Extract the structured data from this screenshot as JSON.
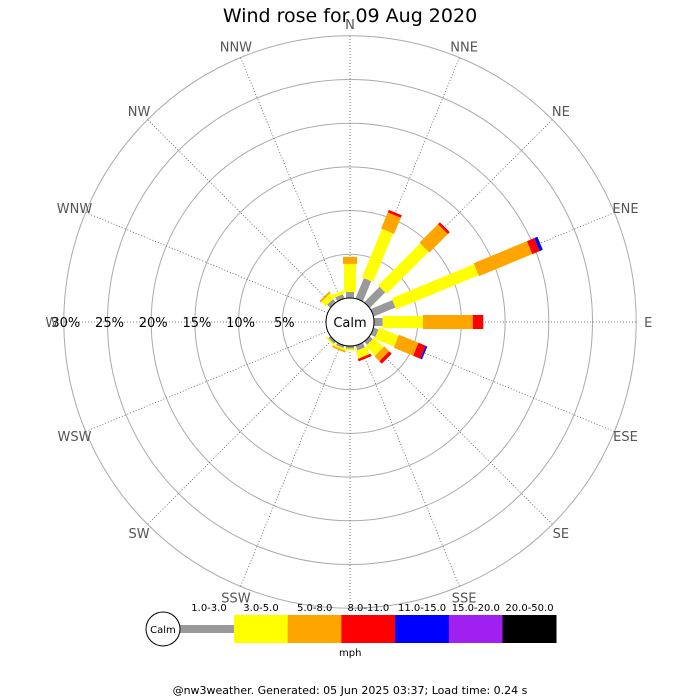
{
  "chart_data": {
    "type": "wind-rose",
    "title": "Wind rose for 09 Aug 2020",
    "unit": "mph",
    "calm_label": "Calm",
    "directions": [
      "N",
      "NNE",
      "NE",
      "ENE",
      "E",
      "ESE",
      "SE",
      "SSE",
      "S",
      "SSW",
      "SW",
      "WSW",
      "W",
      "WNW",
      "NW",
      "NNW"
    ],
    "ring_labels": [
      "5%",
      "10%",
      "15%",
      "20%",
      "25%",
      "30%"
    ],
    "ring_values": [
      5,
      10,
      15,
      20,
      25,
      30
    ],
    "speed_bins": [
      "1.0-3.0",
      "3.0-5.0",
      "5.0-8.0",
      "8.0-11.0",
      "11.0-15.0",
      "15.0-20.0",
      "20.0-50.0"
    ],
    "bin_colors": [
      "#999999",
      "#ffff00",
      "#ffa500",
      "#ff0000",
      "#0000ff",
      "#a020f0",
      "#000000"
    ],
    "calm_percent": 3,
    "frequencies": [
      {
        "dir": "N",
        "segments": [
          0.7,
          3.2,
          0.8,
          0,
          0,
          0,
          0
        ]
      },
      {
        "dir": "NNE",
        "segments": [
          2.5,
          6.0,
          2.0,
          0.3,
          0,
          0,
          0
        ]
      },
      {
        "dir": "NE",
        "segments": [
          2.5,
          6.8,
          3.0,
          0.3,
          0,
          0,
          0
        ]
      },
      {
        "dir": "ENE",
        "segments": [
          2.7,
          10.2,
          6.6,
          0.9,
          0.4,
          0,
          0
        ]
      },
      {
        "dir": "E",
        "segments": [
          1.0,
          4.6,
          5.7,
          1.2,
          0,
          0,
          0
        ]
      },
      {
        "dir": "ESE",
        "segments": [
          0.6,
          2.4,
          2.4,
          0.9,
          0.2,
          0,
          0
        ]
      },
      {
        "dir": "SE",
        "segments": [
          0.5,
          1.5,
          0.8,
          0.4,
          0,
          0,
          0
        ]
      },
      {
        "dir": "SSE",
        "segments": [
          0.6,
          0.9,
          0,
          0.3,
          0,
          0,
          0
        ]
      },
      {
        "dir": "S",
        "segments": [
          0.3,
          0.2,
          0,
          0,
          0,
          0,
          0
        ]
      },
      {
        "dir": "SSW",
        "segments": [
          0.3,
          0.2,
          0.2,
          0,
          0,
          0,
          0
        ]
      },
      {
        "dir": "SW",
        "segments": [
          0.3,
          0.2,
          0,
          0,
          0,
          0,
          0
        ]
      },
      {
        "dir": "WSW",
        "segments": [
          0,
          0,
          0,
          0,
          0,
          0,
          0
        ]
      },
      {
        "dir": "W",
        "segments": [
          0,
          0,
          0,
          0,
          0,
          0,
          0
        ]
      },
      {
        "dir": "WNW",
        "segments": [
          0,
          0,
          0,
          0,
          0,
          0,
          0
        ]
      },
      {
        "dir": "NW",
        "segments": [
          0.5,
          0.7,
          0.2,
          0,
          0,
          0,
          0
        ]
      },
      {
        "dir": "NNW",
        "segments": [
          0.5,
          0.4,
          0,
          0,
          0,
          0,
          0
        ]
      }
    ]
  },
  "footer": "@nw3weather. Generated: 05 Jun 2025 03:37; Load time: 0.24 s"
}
